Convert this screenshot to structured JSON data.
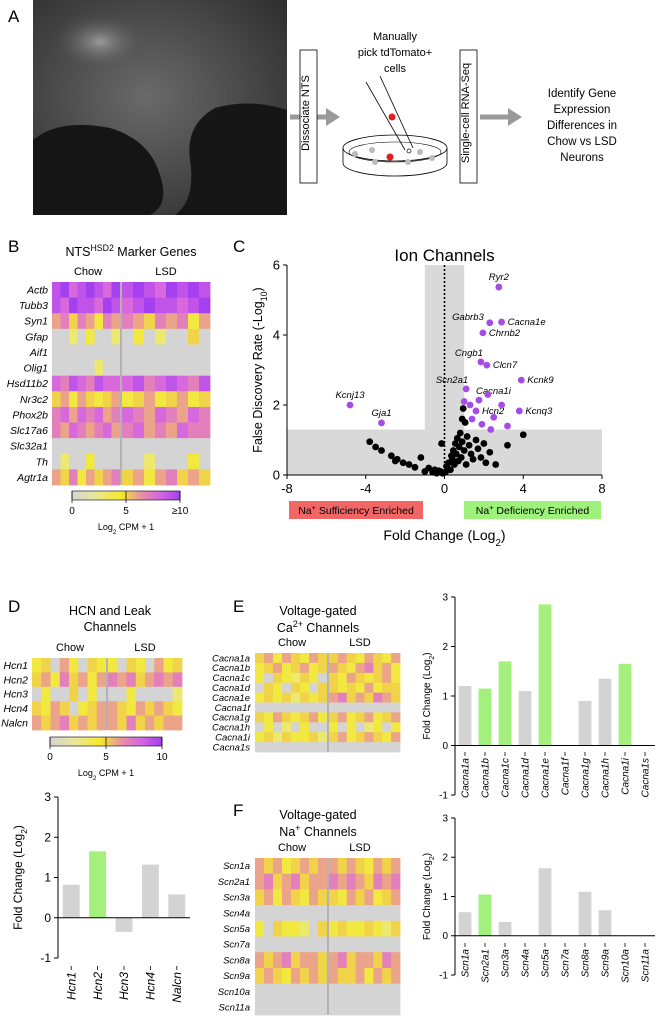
{
  "panel_labels": [
    "A",
    "B",
    "C",
    "D",
    "E",
    "F"
  ],
  "schematic": {
    "step1": "Dissociate NTS",
    "pick": [
      "Manually",
      "pick tdTomato+",
      "cells"
    ],
    "step2": "Single-cell RNA-Seq",
    "result": [
      "Identify Gene",
      "Expression",
      "Differences in",
      "Chow vs LSD",
      "Neurons"
    ]
  },
  "chart_data": [
    {
      "type": "heatmap",
      "title": [
        [
          {
            "text": "NTS"
          },
          {
            "text": "HSD2",
            "script": "super"
          },
          {
            "text": " Marker Genes"
          }
        ]
      ],
      "groups": [
        "Chow",
        "LSD"
      ],
      "rows": [
        "Actb",
        "Tubb3",
        "Syn1",
        "Gfap",
        "Aif1",
        "Olig1",
        "Hsd11b2",
        "Nr3c2",
        "Phox2b",
        "Slc17a6",
        "Slc32a1",
        "Th",
        "Agtr1a"
      ],
      "values": [
        [
          9,
          10,
          8,
          9,
          10,
          9,
          8,
          10,
          9,
          10,
          9,
          8,
          10,
          9,
          10,
          9
        ],
        [
          9,
          8,
          10,
          9,
          9,
          8,
          10,
          9,
          8,
          9,
          10,
          9,
          9,
          8,
          9,
          10
        ],
        [
          6,
          7,
          5,
          7,
          6,
          4,
          7,
          6,
          7,
          6,
          5,
          7,
          6,
          7,
          4,
          6
        ],
        [
          0,
          0,
          3,
          0,
          4,
          0,
          0,
          3,
          0,
          4,
          0,
          3,
          0,
          0,
          5,
          0
        ],
        [
          0,
          0,
          0,
          0,
          0,
          0,
          0,
          0,
          0,
          0,
          0,
          0,
          0,
          0,
          0,
          0
        ],
        [
          0,
          0,
          0,
          0,
          0,
          3,
          0,
          0,
          0,
          0,
          0,
          0,
          0,
          0,
          0,
          0
        ],
        [
          8,
          7,
          9,
          8,
          7,
          9,
          8,
          8,
          8,
          9,
          7,
          8,
          9,
          8,
          7,
          9
        ],
        [
          5,
          6,
          4,
          6,
          5,
          4,
          5,
          6,
          4,
          5,
          6,
          4,
          5,
          6,
          4,
          5
        ],
        [
          7,
          8,
          6,
          8,
          7,
          8,
          6,
          7,
          8,
          7,
          6,
          8,
          7,
          6,
          8,
          7
        ],
        [
          7,
          6,
          8,
          7,
          6,
          7,
          8,
          6,
          7,
          8,
          6,
          7,
          6,
          8,
          7,
          7
        ],
        [
          0,
          0,
          0,
          0,
          0,
          0,
          0,
          0,
          0,
          0,
          0,
          0,
          0,
          0,
          0,
          0
        ],
        [
          0,
          3,
          0,
          0,
          4,
          0,
          0,
          0,
          0,
          0,
          3,
          0,
          0,
          0,
          4,
          0
        ],
        [
          6,
          5,
          7,
          4,
          6,
          5,
          6,
          7,
          5,
          6,
          4,
          6,
          7,
          5,
          6,
          5
        ]
      ],
      "clim": [
        0,
        10
      ],
      "cticks": [
        0,
        5,
        {
          "value": 10,
          "label": "≥10"
        }
      ],
      "clabel": [
        {
          "text": "Log"
        },
        {
          "text": "2",
          "script": "sub"
        },
        {
          "text": " CPM + 1"
        }
      ]
    },
    {
      "type": "scatter",
      "title": [
        [
          {
            "text": "Ion Channels"
          }
        ]
      ],
      "xlabel": [
        {
          "text": "Fold Change (Log"
        },
        {
          "text": "2",
          "script": "sub"
        },
        {
          "text": ")"
        }
      ],
      "ylabel": [
        {
          "text": "False Discovery Rate (-Log"
        },
        {
          "text": "10",
          "script": "sub"
        },
        {
          "text": ")"
        }
      ],
      "xlim": [
        -8,
        8
      ],
      "xticks": [
        -8,
        -4,
        0,
        4,
        8
      ],
      "ylim": [
        0,
        6
      ],
      "yticks": [
        0,
        2,
        4,
        6
      ],
      "shade_x": [
        -1,
        1
      ],
      "shade_y": 1.3,
      "reference_x": 0,
      "series": [
        {
          "color": "#000000",
          "x": [
            -3.8,
            -3.5,
            -3.2,
            -2.7,
            -2.5,
            -2.4,
            -2.1,
            -1.8,
            -1.5,
            -1.2,
            -1.0,
            -0.8,
            -0.6,
            -0.5,
            -0.4,
            -0.3,
            -0.2,
            -0.1,
            0.05,
            0.1,
            0.2,
            0.3,
            0.35,
            0.4,
            0.45,
            0.5,
            0.55,
            0.6,
            0.65,
            0.7,
            0.75,
            0.8,
            0.85,
            0.9,
            1.0,
            1.1,
            1.15,
            1.25,
            1.35,
            1.45,
            1.6,
            1.7,
            1.85,
            2.0,
            2.1,
            2.3,
            2.6,
            3.2,
            4.0,
            0.9,
            1.05,
            0.95,
            -0.15
          ],
          "y": [
            0.95,
            0.8,
            0.7,
            0.55,
            0.4,
            0.45,
            0.35,
            0.3,
            0.22,
            0.5,
            0.1,
            0.2,
            0.08,
            0.15,
            0.05,
            0.12,
            0.1,
            0.05,
            0.08,
            0.25,
            0.35,
            0.15,
            0.55,
            0.45,
            0.7,
            0.3,
            0.9,
            0.6,
            1.05,
            0.4,
            0.8,
            1.2,
            0.5,
            0.95,
            0.7,
            0.3,
            1.1,
            0.85,
            0.6,
            0.45,
            1.0,
            0.75,
            0.5,
            0.9,
            0.35,
            0.65,
            0.3,
            0.85,
            1.15,
            1.6,
            1.5,
            1.9,
            0.9
          ]
        },
        {
          "color": "#a64ce6",
          "x": [
            2.76,
            2.3,
            2.9,
            1.95,
            1.85,
            2.15,
            1.1,
            1.75,
            3.9,
            1.6,
            3.8,
            -4.8,
            -3.2,
            1.0,
            1.3,
            2.2,
            1.4,
            2.5,
            3.2,
            2.9,
            1.9,
            2.35
          ],
          "y": [
            5.37,
            4.35,
            4.37,
            4.06,
            3.23,
            3.14,
            2.46,
            2.14,
            2.71,
            1.83,
            1.83,
            2.0,
            1.49,
            2.1,
            2.0,
            2.3,
            1.6,
            1.65,
            1.4,
            2.0,
            1.45,
            1.3
          ],
          "labels": [
            "Ryr2",
            "Gabrb3",
            "Cacna1e",
            "Chrnb2",
            "Cngb1",
            "Clcn7",
            "Scn2a1",
            "Cacna1i",
            "Kcnk9",
            "Hcn2",
            "Kcnq3",
            "Kcnj13",
            "Gja1",
            null,
            null,
            null,
            null,
            null,
            null,
            null,
            null,
            null
          ]
        }
      ],
      "annotations": [
        {
          "text": [
            {
              "text": "Na"
            },
            {
              "text": "+",
              "script": "super"
            },
            {
              "text": " Sufficiency Enriched"
            }
          ],
          "color": "#f36666"
        },
        {
          "text": [
            {
              "text": "Na"
            },
            {
              "text": "+",
              "script": "super"
            },
            {
              "text": " Deficiency Enriched"
            }
          ],
          "color": "#9ef27c"
        }
      ]
    },
    {
      "type": "heatmap",
      "title": [
        [
          {
            "text": "HCN and Leak"
          }
        ],
        [
          {
            "text": "Channels"
          }
        ]
      ],
      "groups": [
        "Chow",
        "LSD"
      ],
      "rows": [
        "Hcn1",
        "Hcn2",
        "Hcn3",
        "Hcn4",
        "Nalcn"
      ],
      "values": [
        [
          4,
          5,
          0,
          6,
          4,
          0,
          5,
          4,
          4,
          0,
          5,
          4,
          0,
          6,
          4,
          5
        ],
        [
          5,
          6,
          4,
          7,
          5,
          6,
          4,
          6,
          7,
          6,
          7,
          5,
          6,
          7,
          6,
          7
        ],
        [
          0,
          4,
          0,
          0,
          5,
          0,
          4,
          0,
          0,
          0,
          4,
          0,
          0,
          0,
          0,
          3
        ],
        [
          5,
          4,
          6,
          5,
          0,
          4,
          5,
          6,
          6,
          5,
          4,
          6,
          5,
          6,
          5,
          4
        ],
        [
          6,
          5,
          6,
          7,
          5,
          6,
          5,
          6,
          6,
          5,
          7,
          5,
          6,
          5,
          6,
          6
        ]
      ],
      "clim": [
        0,
        10
      ],
      "cticks": [
        0,
        5,
        10
      ],
      "clabel": [
        {
          "text": "Log"
        },
        {
          "text": "2",
          "script": "sub"
        },
        {
          "text": " CPM + 1"
        }
      ]
    },
    {
      "type": "bar",
      "categories": [
        "Hcn1",
        "Hcn2",
        "Hcn3",
        "Hcn4",
        "Nalcn"
      ],
      "values": [
        0.82,
        1.65,
        -0.35,
        1.32,
        0.58
      ],
      "colors": [
        "#d3d3d3",
        "#a4f07c",
        "#d3d3d3",
        "#d3d3d3",
        "#d3d3d3"
      ],
      "ylim": [
        -1,
        3
      ],
      "yticks": [
        -1,
        0,
        1,
        2,
        3
      ],
      "ylabel": [
        {
          "text": "Fold Change (Log"
        },
        {
          "text": "2",
          "script": "sub"
        },
        {
          "text": ")"
        }
      ]
    },
    {
      "type": "heatmap",
      "title": [
        [
          {
            "text": "Voltage-gated"
          }
        ],
        [
          {
            "text": "Ca"
          },
          {
            "text": "2+",
            "script": "super"
          },
          {
            "text": " Channels"
          }
        ]
      ],
      "groups": [
        "Chow",
        "LSD"
      ],
      "rows": [
        "Cacna1a",
        "Cacna1b",
        "Cacna1c",
        "Cacna1d",
        "Cacna1e",
        "Cacna1f",
        "Cacna1g",
        "Cacna1h",
        "Cacna1i",
        "Cacna1s"
      ],
      "values": [
        [
          5,
          6,
          4,
          6,
          5,
          4,
          6,
          5,
          5,
          6,
          5,
          4,
          6,
          5,
          4,
          6
        ],
        [
          4,
          5,
          6,
          4,
          5,
          6,
          4,
          5,
          6,
          5,
          4,
          6,
          7,
          5,
          6,
          4
        ],
        [
          4,
          0,
          5,
          4,
          3,
          5,
          4,
          0,
          5,
          4,
          6,
          5,
          4,
          5,
          6,
          4
        ],
        [
          0,
          5,
          4,
          0,
          5,
          4,
          0,
          5,
          5,
          4,
          5,
          4,
          6,
          4,
          5,
          5
        ],
        [
          4,
          5,
          4,
          5,
          3,
          5,
          4,
          5,
          6,
          7,
          5,
          6,
          5,
          7,
          6,
          5
        ],
        [
          0,
          0,
          0,
          0,
          0,
          0,
          0,
          0,
          0,
          0,
          0,
          0,
          0,
          0,
          0,
          0
        ],
        [
          5,
          4,
          6,
          5,
          4,
          5,
          6,
          4,
          5,
          6,
          4,
          5,
          6,
          4,
          5,
          6
        ],
        [
          0,
          4,
          0,
          3,
          0,
          4,
          0,
          0,
          4,
          0,
          4,
          0,
          3,
          4,
          0,
          4
        ],
        [
          4,
          5,
          3,
          5,
          4,
          4,
          5,
          3,
          5,
          6,
          4,
          5,
          6,
          5,
          4,
          6
        ],
        [
          0,
          0,
          0,
          0,
          0,
          0,
          0,
          0,
          0,
          0,
          0,
          0,
          0,
          0,
          0,
          0
        ]
      ],
      "clim": [
        0,
        10
      ]
    },
    {
      "type": "bar",
      "categories": [
        "Cacna1a",
        "Cacna1b",
        "Cacna1c",
        "Cacna1d",
        "Cacna1e",
        "Cacna1f",
        "Cacna1g",
        "Cacna1h",
        "Cacna1i",
        "Cacna1s"
      ],
      "values": [
        1.2,
        1.15,
        1.7,
        1.1,
        2.85,
        null,
        0.9,
        1.35,
        1.65,
        null
      ],
      "colors": [
        "#d3d3d3",
        "#a4f07c",
        "#a4f07c",
        "#d3d3d3",
        "#a4f07c",
        null,
        "#d3d3d3",
        "#d3d3d3",
        "#a4f07c",
        null
      ],
      "ylim": [
        -1,
        3
      ],
      "yticks": [
        -1,
        0,
        1,
        2,
        3
      ],
      "ylabel": [
        {
          "text": "Fold Change (Log"
        },
        {
          "text": "2",
          "script": "sub"
        },
        {
          "text": ")"
        }
      ]
    },
    {
      "type": "heatmap",
      "title": [
        [
          {
            "text": "Voltage-gated"
          }
        ],
        [
          {
            "text": "Na"
          },
          {
            "text": "+",
            "script": "super"
          },
          {
            "text": " Channels"
          }
        ]
      ],
      "groups": [
        "Chow",
        "LSD"
      ],
      "rows": [
        "Scn1a",
        "Scn2a1",
        "Scn3a",
        "Scn4a",
        "Scn5a",
        "Scn7a",
        "Scn8a",
        "Scn9a",
        "Scn10a",
        "Scn11a"
      ],
      "values": [
        [
          6,
          5,
          6,
          4,
          5,
          6,
          5,
          6,
          6,
          5,
          6,
          5,
          4,
          6,
          5,
          6
        ],
        [
          6,
          7,
          5,
          6,
          7,
          5,
          6,
          6,
          7,
          6,
          7,
          6,
          5,
          7,
          6,
          7
        ],
        [
          5,
          6,
          4,
          6,
          5,
          4,
          6,
          5,
          5,
          4,
          6,
          5,
          6,
          4,
          5,
          6
        ],
        [
          0,
          0,
          0,
          0,
          0,
          0,
          0,
          0,
          0,
          0,
          0,
          0,
          0,
          0,
          0,
          0
        ],
        [
          4,
          0,
          5,
          4,
          4,
          3,
          0,
          5,
          4,
          5,
          4,
          4,
          5,
          4,
          3,
          5
        ],
        [
          0,
          0,
          0,
          0,
          0,
          0,
          0,
          0,
          0,
          0,
          0,
          0,
          0,
          0,
          0,
          0
        ],
        [
          6,
          5,
          6,
          7,
          5,
          6,
          6,
          5,
          6,
          7,
          5,
          6,
          6,
          5,
          7,
          6
        ],
        [
          5,
          6,
          5,
          4,
          6,
          5,
          6,
          5,
          6,
          5,
          5,
          6,
          4,
          6,
          5,
          6
        ],
        [
          0,
          0,
          0,
          0,
          0,
          0,
          0,
          0,
          0,
          0,
          0,
          0,
          0,
          0,
          0,
          0
        ],
        [
          0,
          0,
          0,
          0,
          0,
          0,
          0,
          0,
          0,
          0,
          0,
          0,
          0,
          0,
          0,
          0
        ]
      ],
      "clim": [
        0,
        10
      ]
    },
    {
      "type": "bar",
      "categories": [
        "Scn1a",
        "Scn2a1",
        "Scn3a",
        "Scn4a",
        "Scn5a",
        "Scn7a",
        "Scn8a",
        "Scn9a",
        "Scn10a",
        "Scn11a"
      ],
      "values": [
        0.6,
        1.05,
        0.35,
        null,
        1.72,
        null,
        1.12,
        0.65,
        null,
        null
      ],
      "colors": [
        "#d3d3d3",
        "#a4f07c",
        "#d3d3d3",
        null,
        "#d3d3d3",
        null,
        "#d3d3d3",
        "#d3d3d3",
        null,
        null
      ],
      "ylim": [
        -1,
        3
      ],
      "yticks": [
        -1,
        0,
        1,
        2,
        3
      ],
      "ylabel": [
        {
          "text": "Fold Change (Log"
        },
        {
          "text": "2",
          "script": "sub"
        },
        {
          "text": ")"
        }
      ]
    }
  ]
}
